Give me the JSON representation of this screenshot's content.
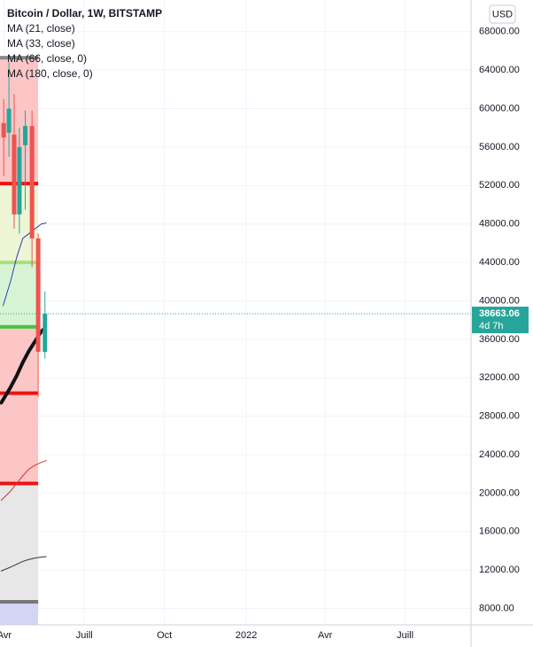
{
  "chart_data": {
    "type": "candlestick",
    "title": "Bitcoin / Dollar, 1W, BITSTAMP",
    "currency": "USD",
    "indicators": [
      {
        "name": "MA (21, close)",
        "color": "#2a3fb8",
        "width": 1,
        "x": [
          -0.2,
          1,
          2,
          3,
          4,
          5,
          6,
          6.8
        ],
        "values": [
          39500,
          42000,
          44500,
          46500,
          47000,
          47500,
          48000,
          48100
        ]
      },
      {
        "name": "MA (33, close)",
        "color": "#111111",
        "width": 4,
        "x": [
          -0.5,
          1,
          2,
          3,
          4,
          5,
          6,
          6.6
        ],
        "values": [
          29400,
          31000,
          32200,
          33600,
          34800,
          35800,
          36800,
          37200
        ]
      },
      {
        "name": "MA (66, close, 0)",
        "color": "#e03030",
        "width": 1,
        "x": [
          -0.5,
          1,
          2,
          3,
          4,
          5,
          6,
          6.8
        ],
        "values": [
          19250,
          20200,
          21000,
          21800,
          22500,
          22900,
          23200,
          23400
        ]
      },
      {
        "name": "MA (180, close, 0)",
        "color": "#333333",
        "width": 1,
        "x": [
          -0.5,
          1,
          2,
          3,
          4,
          5,
          6,
          6.8
        ],
        "values": [
          11900,
          12300,
          12600,
          12900,
          13100,
          13250,
          13350,
          13400
        ]
      }
    ],
    "x": [
      -0.1,
      0.75,
      1.6,
      2.45,
      3.4,
      4.5,
      5.5,
      6.6
    ],
    "open": [
      58500,
      57500,
      57300,
      49000,
      56200,
      58200,
      46500,
      34700
    ],
    "high": [
      61000,
      64800,
      61500,
      58000,
      59800,
      59800,
      47000,
      41000
    ],
    "low": [
      53000,
      55000,
      47500,
      47000,
      49500,
      43500,
      30000,
      34000
    ],
    "close": [
      57000,
      60000,
      49000,
      56000,
      58200,
      46500,
      34700,
      38663.06
    ],
    "up_color": "#26a69a",
    "down_color": "#ef5350",
    "levels": [
      {
        "value": 65300,
        "color": "#888888"
      },
      {
        "value": 52200,
        "color": "#ee1111"
      },
      {
        "value": 44000,
        "color": "#a6e07a"
      },
      {
        "value": 37300,
        "color": "#44c244"
      },
      {
        "value": 30400,
        "color": "#ee1111"
      },
      {
        "value": 21000,
        "color": "#ee1111"
      },
      {
        "value": 8700,
        "color": "#777777"
      }
    ],
    "zones": [
      {
        "range": [
          65300,
          52200
        ],
        "color": "#fcc6c6"
      },
      {
        "range": [
          52200,
          44000
        ],
        "color": "#eef5d4"
      },
      {
        "range": [
          44000,
          37300
        ],
        "color": "#d6f4d4"
      },
      {
        "range": [
          37300,
          21000
        ],
        "color": "#fcc6c6"
      },
      {
        "range": [
          21000,
          8700
        ],
        "color": "#e7e7e7"
      },
      {
        "range": [
          8700,
          6300
        ],
        "color": "#d4d4f6"
      }
    ],
    "levels_x": [
      -0.7,
      5.5
    ],
    "last_price": 38663.06,
    "countdown": "4d 7h",
    "xlim": [
      -0.7,
      75.8
    ],
    "xticks": [
      {
        "value": 0,
        "label": "Avr"
      },
      {
        "value": 13,
        "label": "Juill"
      },
      {
        "value": 26,
        "label": "Oct"
      },
      {
        "value": 39.3,
        "label": "2022"
      },
      {
        "value": 52.1,
        "label": "Avr"
      },
      {
        "value": 65.1,
        "label": "Juill"
      }
    ],
    "ylim": [
      6300,
      71300
    ],
    "yticks": [
      {
        "value": 8000,
        "label": "8000.00"
      },
      {
        "value": 12000,
        "label": "12000.00"
      },
      {
        "value": 16000,
        "label": "16000.00"
      },
      {
        "value": 20000,
        "label": "20000.00"
      },
      {
        "value": 24000,
        "label": "24000.00"
      },
      {
        "value": 28000,
        "label": "28000.00"
      },
      {
        "value": 32000,
        "label": "32000.00"
      },
      {
        "value": 36000,
        "label": "36000.00"
      },
      {
        "value": 40000,
        "label": "40000.00"
      },
      {
        "value": 44000,
        "label": "44000.00"
      },
      {
        "value": 48000,
        "label": "48000.00"
      },
      {
        "value": 52000,
        "label": "52000.00"
      },
      {
        "value": 56000,
        "label": "56000.00"
      },
      {
        "value": 60000,
        "label": "60000.00"
      },
      {
        "value": 64000,
        "label": "64000.00"
      },
      {
        "value": 68000,
        "label": "68000.00"
      }
    ],
    "grid": true
  }
}
